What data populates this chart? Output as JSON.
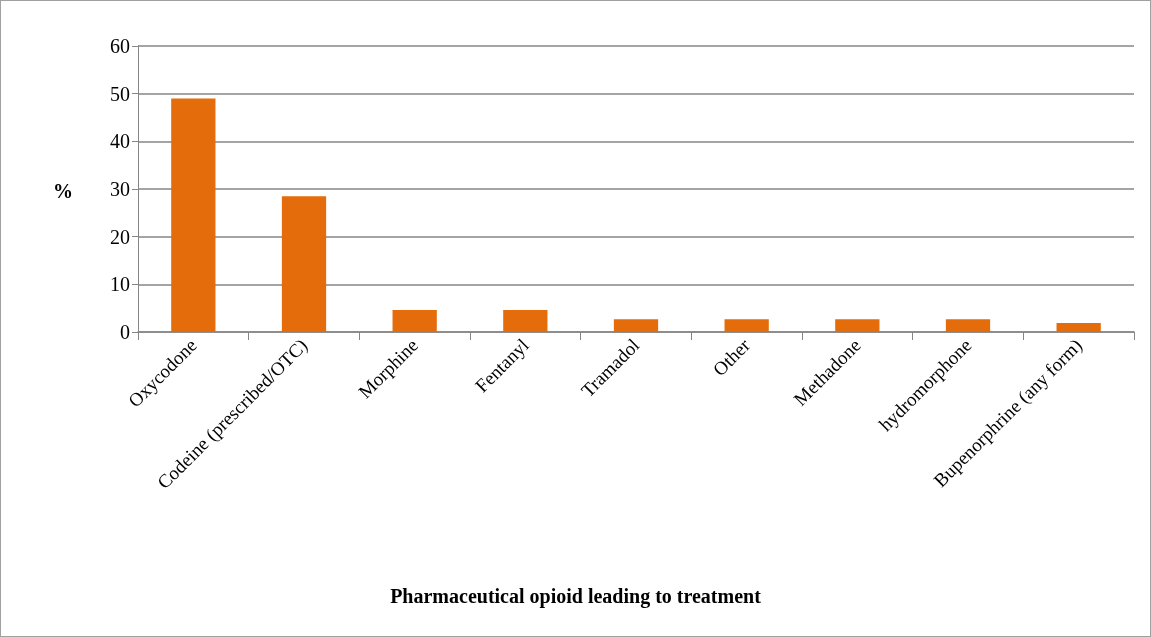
{
  "chart_data": {
    "type": "bar",
    "xlabel": "Pharmaceutical opioid leading to treatment",
    "ylabel": "%",
    "categories": [
      "Oxycodone",
      "Codeine (prescribed/OTC)",
      "Morphine",
      "Fentanyl",
      "Tramadol",
      "Other",
      "Methadone",
      "hydromorphone",
      "Bupenorphrine (any form)"
    ],
    "values": [
      49,
      28.5,
      4.6,
      4.6,
      2.7,
      2.7,
      2.7,
      2.7,
      1.9
    ],
    "color": "#e46c0a",
    "ylim": [
      0,
      60
    ],
    "yticks": [
      0,
      10,
      20,
      30,
      40,
      50,
      60
    ],
    "grid": "y"
  }
}
